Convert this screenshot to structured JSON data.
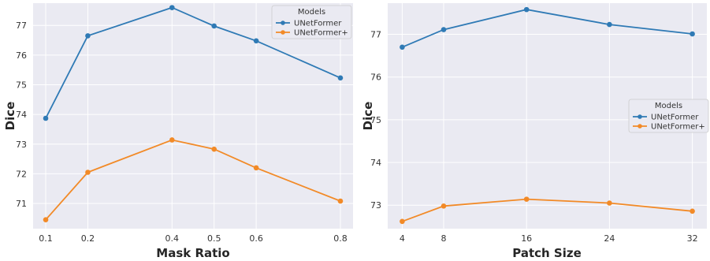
{
  "chart_data": [
    {
      "type": "line",
      "title": "",
      "xlabel": "Mask Ratio",
      "ylabel": "Dice",
      "x": [
        0.1,
        0.2,
        0.4,
        0.5,
        0.6,
        0.8
      ],
      "x_tick_labels": [
        "0.1",
        "0.2",
        "0.4",
        "0.5",
        "0.6",
        "0.8"
      ],
      "xlim": [
        0.07,
        0.83
      ],
      "ylim": [
        70.15,
        77.75
      ],
      "y_ticks": [
        71,
        72,
        73,
        74,
        75,
        76,
        77
      ],
      "grid": true,
      "legend": {
        "title": "Models",
        "placement": "top-right"
      },
      "series": [
        {
          "name": "UNetFormer",
          "color": "#2f7ab5",
          "values": [
            73.87,
            76.65,
            77.6,
            76.98,
            76.48,
            75.23
          ]
        },
        {
          "name": "UNetFormer+",
          "color": "#f28a27",
          "values": [
            70.45,
            72.05,
            73.14,
            72.83,
            72.2,
            71.08
          ]
        }
      ]
    },
    {
      "type": "line",
      "title": "",
      "xlabel": "Patch Size",
      "ylabel": "Dice",
      "x": [
        4,
        8,
        16,
        24,
        32
      ],
      "x_tick_labels": [
        "4",
        "8",
        "16",
        "24",
        "32"
      ],
      "xlim": [
        2.6,
        33.4
      ],
      "ylim": [
        72.45,
        77.73
      ],
      "y_ticks": [
        73,
        74,
        75,
        76,
        77
      ],
      "grid": true,
      "legend": {
        "title": "Models",
        "placement": "center-right"
      },
      "series": [
        {
          "name": "UNetFormer",
          "color": "#2f7ab5",
          "values": [
            76.7,
            77.11,
            77.58,
            77.23,
            77.01
          ]
        },
        {
          "name": "UNetFormer+",
          "color": "#f28a27",
          "values": [
            72.62,
            72.98,
            73.14,
            73.05,
            72.86
          ]
        }
      ]
    }
  ]
}
